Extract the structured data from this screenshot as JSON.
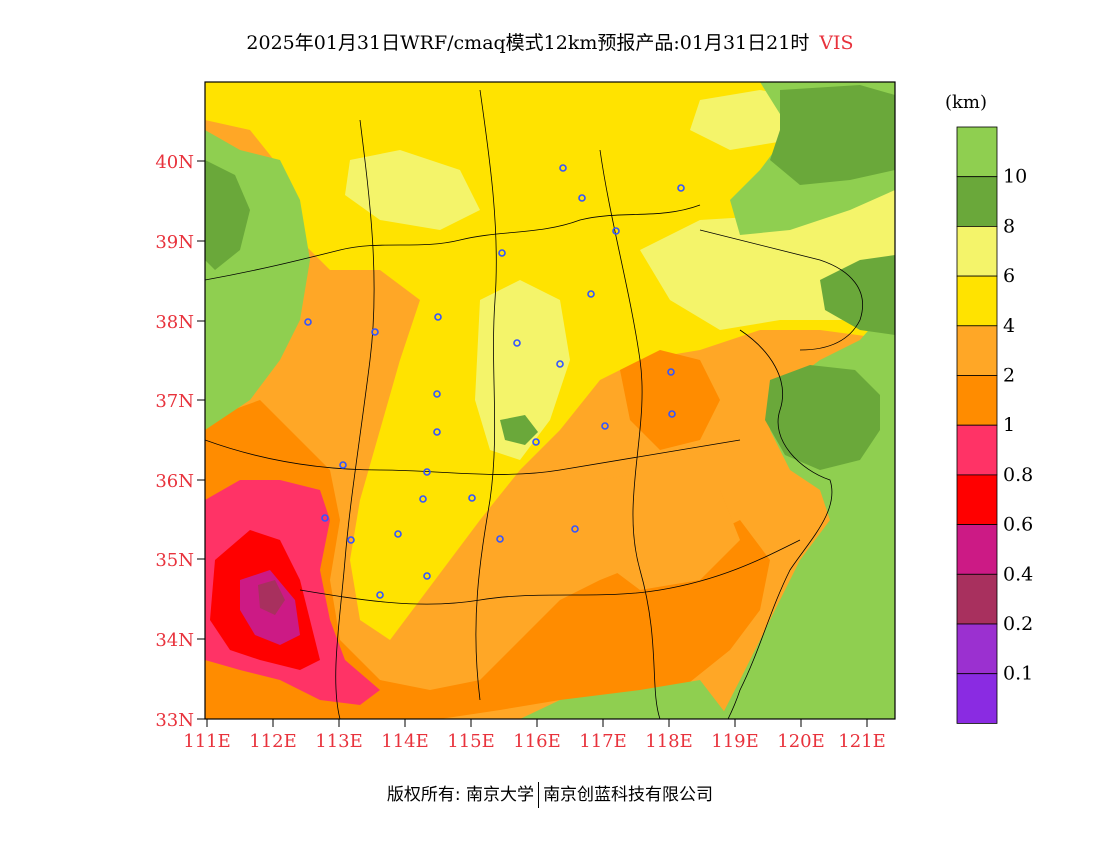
{
  "title": {
    "main": "2025年01月31日WRF/cmaq模式12km预报产品:01月31日21时",
    "variable": "VIS"
  },
  "lat_labels": [
    "40N",
    "39N",
    "38N",
    "37N",
    "36N",
    "35N",
    "34N",
    "33N"
  ],
  "lon_labels": [
    "111E",
    "112E",
    "113E",
    "114E",
    "115E",
    "116E",
    "117E",
    "118E",
    "119E",
    "120E",
    "121E"
  ],
  "legend": {
    "unit": "(km)",
    "levels": [
      {
        "label": "10",
        "color": "#8fcf50"
      },
      {
        "label": "8",
        "color": "#6aa83a"
      },
      {
        "label": "6",
        "color": "#f4f46a"
      },
      {
        "label": "4",
        "color": "#ffe300"
      },
      {
        "label": "2",
        "color": "#ffa726"
      },
      {
        "label": "1",
        "color": "#ff8c00"
      },
      {
        "label": "0.8",
        "color": "#ff3366"
      },
      {
        "label": "0.6",
        "color": "#ff0000"
      },
      {
        "label": "0.4",
        "color": "#cc1a85"
      },
      {
        "label": "0.2",
        "color": "#a8305e"
      },
      {
        "label": "0.1",
        "color": "#9b30d0"
      },
      {
        "label": "",
        "color": "#8a2be2"
      }
    ]
  },
  "colors": {
    "axis_label": "#e8323c",
    "station": "#3355ff"
  },
  "copyright": {
    "left": "版权所有: 南京大学",
    "right": "南京创蓝科技有限公司"
  }
}
